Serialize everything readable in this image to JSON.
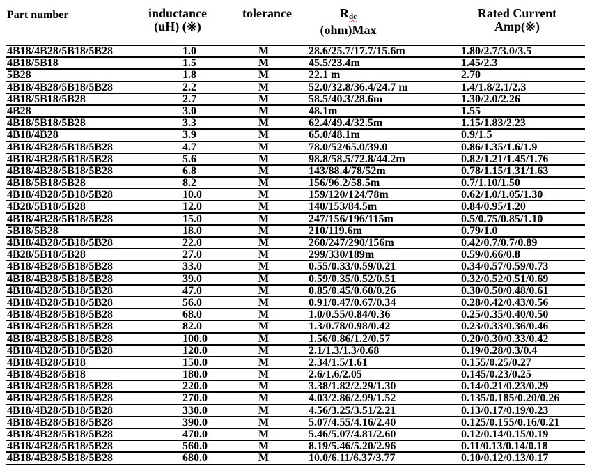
{
  "header": {
    "part_number": "Part number",
    "inductance": "inductance",
    "inductance_unit": "(uH) (※)",
    "tolerance": "tolerance",
    "rdc_main": "R",
    "rdc_sub": "dc",
    "rdc_unit": "(ohm)Max",
    "rated_current": "Rated Current",
    "rated_current_unit": "Amp(※)"
  },
  "rows": [
    [
      "4B18/4B28/5B18/5B28",
      "1.0",
      "M",
      "28.6/25.7/17.7/15.6m",
      "1.80/2.7/3.0/3.5"
    ],
    [
      "4B18/5B18",
      "1.5",
      "M",
      "45.5/23.4m",
      "1.45/2.3"
    ],
    [
      "5B28",
      "1.8",
      "M",
      "22.1 m",
      "2.70"
    ],
    [
      "4B18/4B28/5B18/5B28",
      "2.2",
      "M",
      "52.0/32.8/36.4/24.7 m",
      "1.4/1.8/2.1/2.3"
    ],
    [
      "4B18/5B18/5B28",
      "2.7",
      "M",
      "58.5/40.3/28.6m",
      "1.30/2.0/2.26"
    ],
    [
      "4B28",
      "3.0",
      "M",
      "48.1m",
      "1.55"
    ],
    [
      "4B18/5B18/5B28",
      "3.3",
      "M",
      "62.4/49.4/32.5m",
      "1.15/1.83/2.23"
    ],
    [
      "4B18/4B28",
      "3.9",
      "M",
      "65.0/48.1m",
      "0.9/1.5"
    ],
    [
      "4B18/4B28/5B18/5B28",
      "4.7",
      "M",
      "78.0/52/65.0/39.0",
      "0.86/1.35/1.6/1.9"
    ],
    [
      "4B18/4B28/5B18/5B28",
      "5.6",
      "M",
      "98.8/58.5/72.8/44.2m",
      "0.82/1.21/1.45/1.76"
    ],
    [
      "4B18/4B28/5B18/5B28",
      "6.8",
      "M",
      "143/88.4/78/52m",
      "0.78/1.15/1.31/1.63"
    ],
    [
      "4B18/5B18/5B28",
      "8.2",
      "M",
      "156/96.2/58.5m",
      "0.7/1.10/1.50"
    ],
    [
      "4B18/4B28/5B18/5B28",
      "10.0",
      "M",
      "159/120/124/78m",
      "0.62/1.0/1.05/1.30"
    ],
    [
      "4B28/5B18/5B28",
      "12.0",
      "M",
      "140/153/84.5m",
      "0.84/0.95/1.20"
    ],
    [
      "4B18/4B28/5B18/5B28",
      "15.0",
      "M",
      "247/156/196/115m",
      "0.5/0.75/0.85/1.10"
    ],
    [
      "5B18/5B28",
      "18.0",
      "M",
      "210/119.6m",
      "0.79/1.0"
    ],
    [
      "4B18/4B28/5B18/5B28",
      "22.0",
      "M",
      "260/247/290/156m",
      "0.42/0.7/0.7/0.89"
    ],
    [
      "4B28/5B18/5B28",
      "27.0",
      "M",
      "299/330/189m",
      "0.59/0.66/0.8"
    ],
    [
      "4B18/4B28/5B18/5B28",
      "33.0",
      "M",
      "0.55/0.33/0.59/0.21",
      "0.34/0.57/0.59/0.73"
    ],
    [
      "4B18/4B28/5B18/5B28",
      "39.0",
      "M",
      "0.59/0.35/0.52/0.51",
      "0.32/0.52/0.51/0.69"
    ],
    [
      "4B18/4B28/5B18/5B28",
      "47.0",
      "M",
      "0.85/0.45/0.60/0.26",
      "0.30/0.50/0.48/0.61"
    ],
    [
      "4B18/4B28/5B18/5B28",
      "56.0",
      "M",
      "0.91/0.47/0.67/0.34",
      "0.28/0.42/0.43/0.56"
    ],
    [
      "4B18/4B28/5B18/5B28",
      "68.0",
      "M",
      "1.0/0.55/0.84/0.36",
      "0.25/0.35/0.40/0.50"
    ],
    [
      "4B18/4B28/5B18/5B28",
      "82.0",
      "M",
      "1.3/0.78/0.98/0.42",
      "0.23/0.33/0.36/0.46"
    ],
    [
      "4B18/4B28/5B18/5B28",
      "100.0",
      "M",
      "1.56/0.86/1.2/0.57",
      "0.20/0.30/0.33/0.42"
    ],
    [
      "4B18/4B28/5B18/5B28",
      "120.0",
      "M",
      "2.1/1.3/1.3/0.68",
      "0.19/0.28/0.3/0.4"
    ],
    [
      "4B18/4B28/5B18",
      "150.0",
      "M",
      "2.34/1.5/1.61",
      "0.155/0.25/0.27"
    ],
    [
      "4B18/4B28/5B18",
      "180.0",
      "M",
      "2.6/1.6/2.05",
      "0.145/0.23/0.25"
    ],
    [
      "4B18/4B28/5B18/5B28",
      "220.0",
      "M",
      "3.38/1.82/2.29/1.30",
      "0.14/0.21/0.23/0.29"
    ],
    [
      "4B18/4B28/5B18/5B28",
      "270.0",
      "M",
      "4.03/2.86/2.99/1.52",
      "0.135/0.185/0.20/0.26"
    ],
    [
      "4B18/4B28/5B18/5B28",
      "330.0",
      "M",
      "4.56/3.25/3.51/2.21",
      "0.13/0.17/0.19/0.23"
    ],
    [
      "4B18/4B28/5B18/5B28",
      "390.0",
      "M",
      "5.07/4.55/4.16/2.40",
      "0.125/0.155/0.16/0.21"
    ],
    [
      "4B18/4B28/5B18/5B28",
      "470.0",
      "M",
      "5.46/5.07/4.81/2.60",
      "0.12/0.14/0.15/0.19"
    ],
    [
      "4B18/4B28/5B18/5B28",
      "560.0",
      "M",
      "8.19/5.46/5.20/2.96",
      "0.11/0.13/0.14/0.18"
    ],
    [
      "4B18/4B28/5B18/5B28",
      "680.0",
      "M",
      "10.0/6.11/6.37/3.77",
      "0.10/0.12/0.13/0.17"
    ]
  ]
}
